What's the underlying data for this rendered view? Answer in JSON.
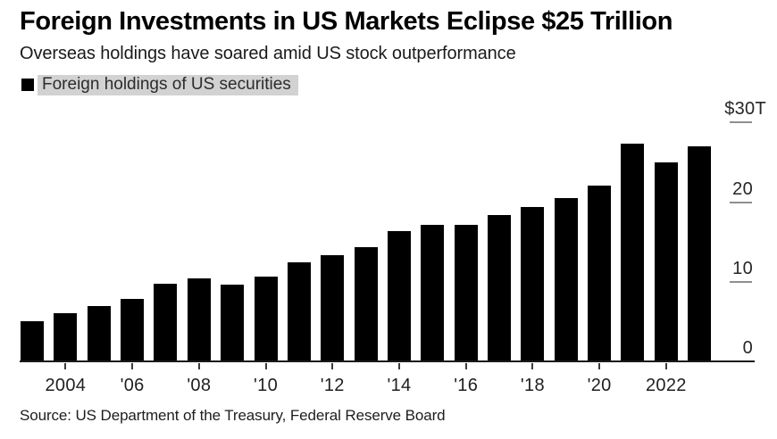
{
  "header": {
    "title": "Foreign Investments in US Markets Eclipse $25 Trillion",
    "subtitle": "Overseas holdings have soared amid US stock outperformance"
  },
  "legend": {
    "label": "Foreign holdings of US securities",
    "swatch_color": "#000000",
    "highlight_color": "#d2d2d2"
  },
  "footer": {
    "source": "Source: US Department of the Treasury, Federal Reserve Board"
  },
  "colors": {
    "bar": "#000000",
    "background": "#ffffff",
    "y_tick": "#8f8f8f",
    "x_tick": "#3c3c3c",
    "text": "#000000"
  },
  "chart_data": {
    "type": "bar",
    "title": "Foreign Investments in US Markets Eclipse $25 Trillion",
    "subtitle": "Overseas holdings have soared amid US stock outperformance",
    "series_name": "Foreign holdings of US securities",
    "unit": "USD trillions",
    "categories": [
      2003,
      2004,
      2005,
      2006,
      2007,
      2008,
      2009,
      2010,
      2011,
      2012,
      2013,
      2014,
      2015,
      2016,
      2017,
      2018,
      2019,
      2020,
      2021,
      2022,
      2023
    ],
    "values": [
      5.0,
      6.0,
      6.9,
      7.8,
      9.8,
      10.4,
      9.6,
      10.7,
      12.5,
      13.3,
      14.4,
      16.4,
      17.1,
      17.1,
      18.4,
      19.4,
      20.5,
      22.1,
      27.3,
      25.0,
      27.0
    ],
    "ylim": [
      0,
      30
    ],
    "grid": false,
    "legend_position": "top-left",
    "y_axis": {
      "side": "right",
      "ticks": [
        {
          "label": "$30T",
          "value": 30
        },
        {
          "label": "20",
          "value": 20
        },
        {
          "label": "10",
          "value": 10
        },
        {
          "label": "0",
          "value": 0
        }
      ]
    },
    "x_axis": {
      "ticks": [
        {
          "label": "2004",
          "year": 2004
        },
        {
          "label": "'06",
          "year": 2006
        },
        {
          "label": "'08",
          "year": 2008
        },
        {
          "label": "'10",
          "year": 2010
        },
        {
          "label": "'12",
          "year": 2012
        },
        {
          "label": "'14",
          "year": 2014
        },
        {
          "label": "'16",
          "year": 2016
        },
        {
          "label": "'18",
          "year": 2018
        },
        {
          "label": "'20",
          "year": 2020
        },
        {
          "label": "2022",
          "year": 2022
        }
      ]
    },
    "bar_color": "#000000"
  }
}
